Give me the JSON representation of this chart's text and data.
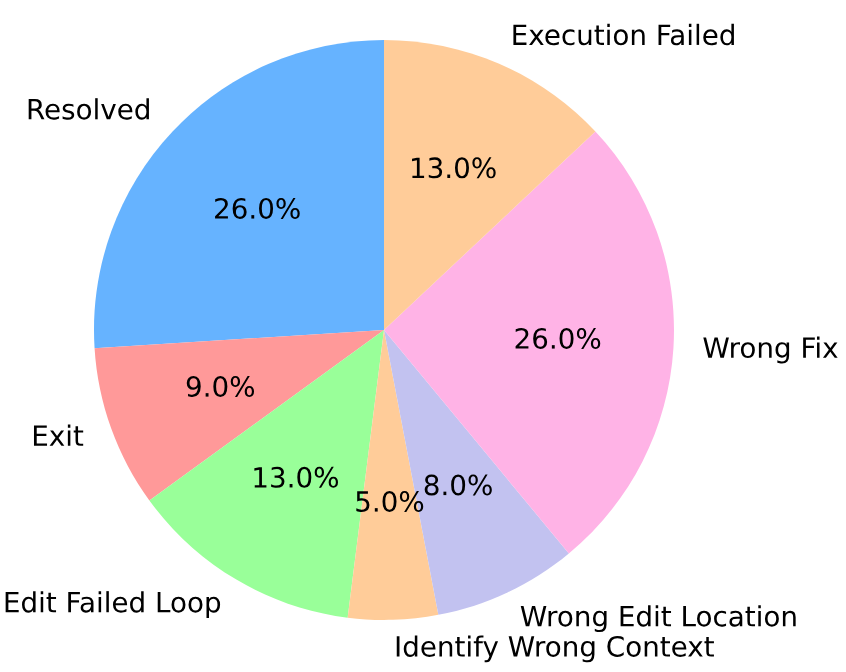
{
  "chart_data": {
    "type": "pie",
    "categories": [
      "Resolved",
      "Exit",
      "Edit Failed Loop",
      "Identify Wrong Context",
      "Wrong Edit Location",
      "Wrong Fix",
      "Execution Failed"
    ],
    "values": [
      26,
      9,
      13,
      5,
      8,
      26,
      13
    ],
    "colors": [
      "#66b3ff",
      "#ff9999",
      "#99ff99",
      "#ffcc99",
      "#c2c2f0",
      "#ffb3e6",
      "#ffcc99"
    ],
    "value_labels": [
      "26.0%",
      "9.0%",
      "13.0%",
      "5.0%",
      "8.0%",
      "26.0%",
      "13.0%"
    ]
  }
}
